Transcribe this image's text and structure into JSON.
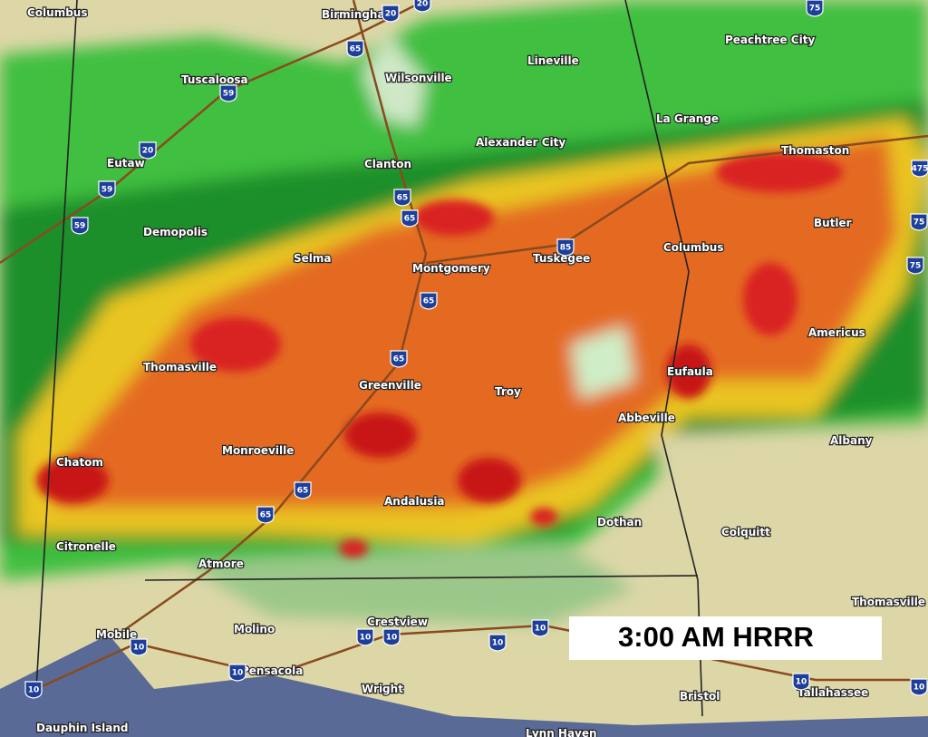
{
  "map": {
    "caption": "3:00 AM HRRR",
    "cities": [
      "Columbus",
      "Birmingham",
      "Tuscaloosa",
      "Wilsonville",
      "Lineville",
      "Peachtree City",
      "Eutaw",
      "Clanton",
      "Alexander City",
      "La Grange",
      "Thomaston",
      "Demopolis",
      "Selma",
      "Montgomery",
      "Tuskegee",
      "Columbus",
      "Butler",
      "Thomasville",
      "Greenville",
      "Troy",
      "Eufaula",
      "Americus",
      "Chatom",
      "Monroeville",
      "Abbeville",
      "Albany",
      "Andalusia",
      "Dothan",
      "Colquitt",
      "Citronelle",
      "Atmore",
      "Thomasville",
      "Molino",
      "Crestview",
      "Mobile",
      "Pensacola",
      "Wright",
      "Bristol",
      "Tallahassee",
      "Dauphin Island",
      "Lynn Haven"
    ],
    "interstates": [
      "20",
      "20",
      "65",
      "59",
      "20",
      "59",
      "59",
      "65",
      "65",
      "85",
      "65",
      "65",
      "65",
      "65",
      "75",
      "475",
      "75",
      "75",
      "10",
      "10",
      "10",
      "10",
      "10",
      "10",
      "10",
      "10",
      "10"
    ]
  }
}
